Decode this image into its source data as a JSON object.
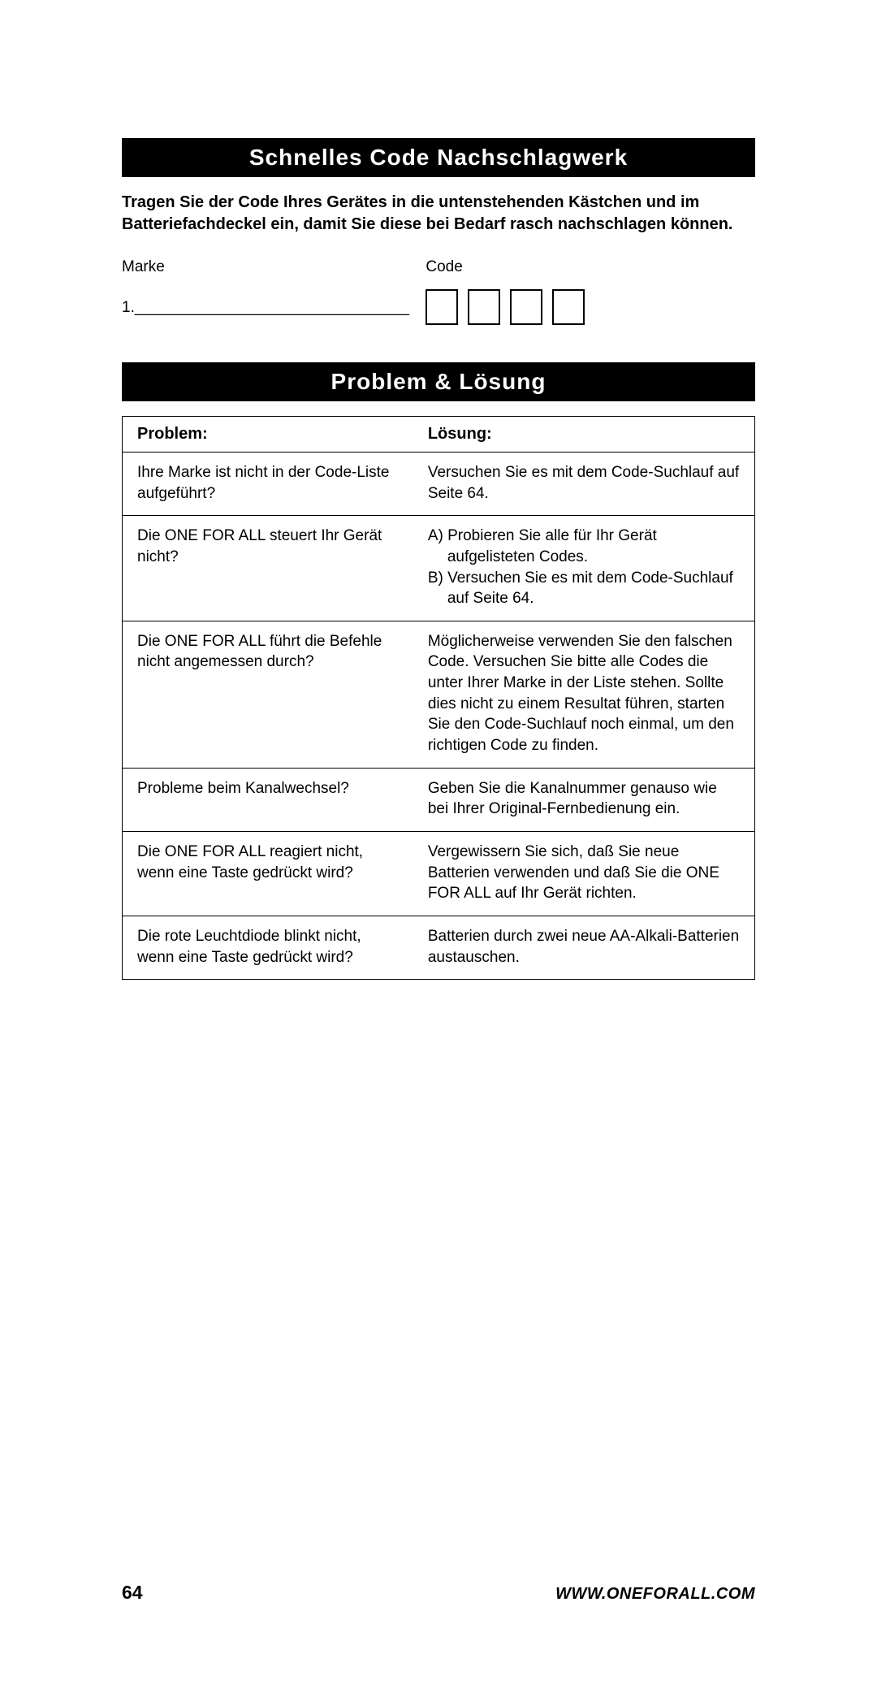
{
  "section1": {
    "title": "Schnelles Code Nachschlagwerk",
    "intro": "Tragen Sie der Code Ihres Gerätes in die untenstehenden Kästchen und im Batteriefachdeckel ein, damit Sie diese bei Bedarf rasch nachschlagen können.",
    "label_marke": "Marke",
    "label_code": "Code",
    "line_prefix": "1.________________________________"
  },
  "section2": {
    "title": "Problem & Lösung",
    "header_problem": "Problem:",
    "header_solution": "Lösung:",
    "rows": [
      {
        "problem": "Ihre Marke ist nicht in der Code-Liste aufgeführt?",
        "solution": "Versuchen Sie es mit dem Code-Suchlauf auf Seite 64."
      },
      {
        "problem": "Die ONE FOR ALL steuert Ihr Gerät nicht?",
        "solution_a": "A) Probieren Sie alle für Ihr Gerät aufgelisteten Codes.",
        "solution_b": "B) Versuchen Sie es mit dem Code-Suchlauf auf Seite 64."
      },
      {
        "problem": "Die ONE FOR ALL führt die Befehle nicht angemessen durch?",
        "solution": "Möglicherweise verwenden Sie den falschen Code. Versuchen Sie bitte alle Codes die unter Ihrer Marke in der Liste stehen. Sollte dies nicht zu einem Resultat führen, starten Sie den Code-Suchlauf noch einmal, um den richtigen Code zu finden."
      },
      {
        "problem": "Probleme beim Kanalwechsel?",
        "solution": "Geben Sie die Kanalnummer genauso wie bei Ihrer Original-Fernbedienung ein."
      },
      {
        "problem": "Die ONE FOR ALL reagiert nicht, wenn eine Taste gedrückt wird?",
        "solution": "Vergewissern Sie sich, daß Sie neue Batterien verwenden und daß Sie die ONE FOR ALL auf Ihr Gerät richten."
      },
      {
        "problem": "Die rote Leuchtdiode blinkt nicht, wenn eine Taste gedrückt wird?",
        "solution": "Batterien durch zwei neue AA-Alkali-Batterien austauschen."
      }
    ]
  },
  "footer": {
    "page": "64",
    "url": "WWW.ONEFORALL.COM"
  }
}
